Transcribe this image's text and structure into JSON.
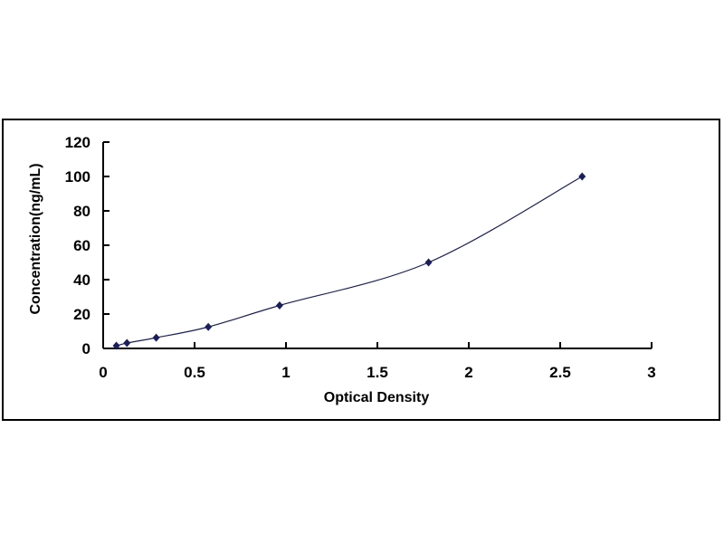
{
  "chart_data": {
    "type": "scatter",
    "title": "",
    "xlabel": "Optical Density",
    "ylabel": "Concentration(ng/mL)",
    "xlim": [
      0,
      3
    ],
    "ylim": [
      0,
      120
    ],
    "xticks": [
      "0",
      "0.5",
      "1",
      "1.5",
      "2",
      "2.5",
      "3"
    ],
    "yticks": [
      "0",
      "20",
      "40",
      "60",
      "80",
      "100",
      "120"
    ],
    "grid": false,
    "legend": "none",
    "smooth_curve": true,
    "marker": "diamond",
    "color": "#1a1f5c",
    "series": [
      {
        "x": [
          0.072,
          0.13,
          0.29,
          0.575,
          0.965,
          1.78,
          2.62
        ],
        "y": [
          1.56,
          3.13,
          6.25,
          12.5,
          25,
          50,
          100
        ]
      }
    ]
  }
}
